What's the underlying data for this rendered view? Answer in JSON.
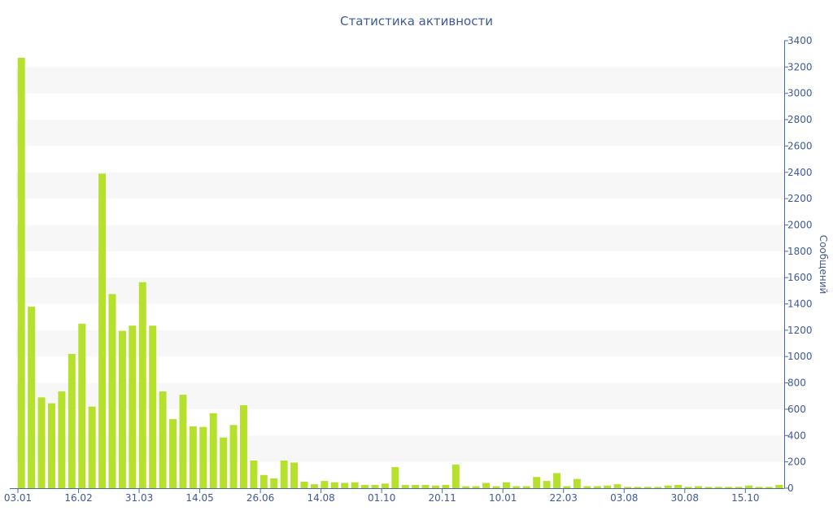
{
  "colors": {
    "bar": "#b5e02c",
    "band": "#f7f7f7",
    "axis": "#4a6aa5",
    "text": "#3e5a96"
  },
  "chart_data": {
    "type": "bar",
    "title": "Статистика активности",
    "ylabel": "Сообщений",
    "xlabel": "",
    "ylim": [
      0,
      3400
    ],
    "y_ticks": [
      0,
      200,
      400,
      600,
      800,
      1000,
      1200,
      1400,
      1600,
      1800,
      2000,
      2200,
      2400,
      2600,
      2800,
      3000,
      3200,
      3400
    ],
    "y_axis_position": "right",
    "grid": "alternating horizontal bands",
    "x_tick_labels": [
      {
        "label": "03.01",
        "bar_index": 0
      },
      {
        "label": "16.02",
        "bar_index": 6
      },
      {
        "label": "31.03",
        "bar_index": 12
      },
      {
        "label": "14.05",
        "bar_index": 18
      },
      {
        "label": "26.06",
        "bar_index": 24
      },
      {
        "label": "14.08",
        "bar_index": 30
      },
      {
        "label": "01.10",
        "bar_index": 36
      },
      {
        "label": "20.11",
        "bar_index": 42
      },
      {
        "label": "10.01",
        "bar_index": 48
      },
      {
        "label": "22.03",
        "bar_index": 54
      },
      {
        "label": "03.08",
        "bar_index": 60
      },
      {
        "label": "30.08",
        "bar_index": 66
      },
      {
        "label": "15.10",
        "bar_index": 72
      }
    ],
    "values": [
      3270,
      1380,
      690,
      645,
      735,
      1020,
      1250,
      620,
      2390,
      1475,
      1195,
      1235,
      1565,
      1235,
      735,
      525,
      710,
      470,
      465,
      570,
      385,
      480,
      630,
      210,
      100,
      75,
      210,
      195,
      50,
      30,
      55,
      45,
      40,
      45,
      25,
      25,
      35,
      160,
      25,
      25,
      25,
      20,
      25,
      180,
      15,
      15,
      40,
      15,
      45,
      15,
      15,
      85,
      55,
      115,
      15,
      70,
      15,
      15,
      20,
      30,
      10,
      10,
      10,
      10,
      20,
      25,
      10,
      15,
      10,
      10,
      10,
      10,
      20,
      10,
      10,
      25
    ]
  }
}
